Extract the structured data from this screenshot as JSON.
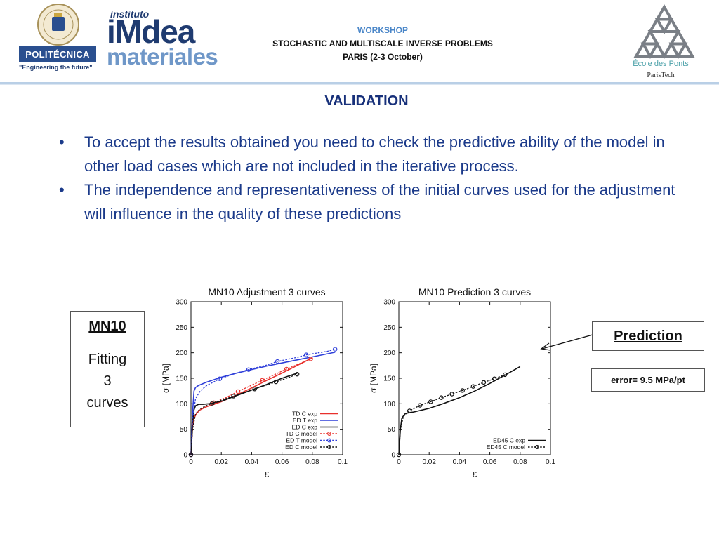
{
  "header": {
    "upm_name": "POLITÉCNICA",
    "upm_tagline": "\"Engineering the future\"",
    "imdea_small": "instituto",
    "imdea_big": "iMdea",
    "imdea_materials": "materiales",
    "workshop_line1": "WORKSHOP",
    "workshop_line2": "STOCHASTIC AND MULTISCALE INVERSE PROBLEMS",
    "workshop_line3": "PARIS (2-3 October)",
    "enpc_name": "École des Ponts",
    "enpc_sub": "ParisTech"
  },
  "slide": {
    "title": "VALIDATION",
    "bullets": [
      "To accept the results obtained you need to check the predictive ability of the model in other load cases which are not included in the iterative process.",
      "The independence and representativeness of the initial curves used for the adjustment will influence in the quality of these predictions"
    ],
    "bullet_symbol": "•"
  },
  "mn_box": {
    "title": "MN10",
    "body_line1": "Fitting",
    "body_line2": "3",
    "body_line3": "curves"
  },
  "prediction_box": {
    "label": "Prediction"
  },
  "error_box": {
    "label": "error= 9.5 MPa/pt"
  },
  "colors": {
    "red": "#e8302c",
    "blue": "#2f3fd9",
    "black": "#111111",
    "navy": "#1b3a8a"
  },
  "chart_data": [
    {
      "type": "line",
      "title": "MN10 Adjustment 3 curves",
      "xlabel": "ε",
      "ylabel": "σ [MPa]",
      "xlim": [
        0,
        0.1
      ],
      "ylim": [
        0,
        300
      ],
      "xticks": [
        0,
        0.02,
        0.04,
        0.06,
        0.08,
        0.1
      ],
      "xtick_labels": [
        "0",
        "0.02",
        "0.04",
        "0.06",
        "0.08",
        "0.1"
      ],
      "yticks": [
        0,
        50,
        100,
        150,
        200,
        250,
        300
      ],
      "ytick_labels": [
        "0",
        "50",
        "100",
        "150",
        "200",
        "250",
        "300"
      ],
      "legend_position": "bottom-right",
      "series": [
        {
          "name": "TD C exp",
          "color": "#e8302c",
          "style": "solid",
          "x": [
            0,
            0.001,
            0.002,
            0.004,
            0.006,
            0.01,
            0.02,
            0.03,
            0.04,
            0.05,
            0.06,
            0.07,
            0.08
          ],
          "y": [
            0,
            55,
            72,
            82,
            88,
            94,
            104,
            117,
            131,
            146,
            160,
            175,
            190
          ]
        },
        {
          "name": "ED T exp",
          "color": "#2f3fd9",
          "style": "solid",
          "x": [
            0,
            0.001,
            0.002,
            0.003,
            0.005,
            0.01,
            0.02,
            0.03,
            0.04,
            0.05,
            0.06,
            0.07,
            0.08,
            0.09,
            0.095
          ],
          "y": [
            0,
            80,
            125,
            132,
            136,
            142,
            152,
            160,
            167,
            174,
            180,
            186,
            192,
            198,
            201
          ]
        },
        {
          "name": "ED C exp",
          "color": "#111111",
          "style": "solid",
          "x": [
            0,
            0.001,
            0.002,
            0.003,
            0.005,
            0.008,
            0.012,
            0.02,
            0.03,
            0.04,
            0.05,
            0.06,
            0.07
          ],
          "y": [
            0,
            60,
            88,
            96,
            99,
            99,
            100,
            105,
            116,
            127,
            138,
            150,
            160
          ]
        },
        {
          "name": "TD C model",
          "color": "#e8302c",
          "style": "dashed",
          "markers": true,
          "x": [
            0,
            0.001,
            0.003,
            0.006,
            0.01,
            0.015,
            0.023,
            0.031,
            0.039,
            0.047,
            0.055,
            0.063,
            0.071,
            0.079
          ],
          "y": [
            0,
            55,
            80,
            90,
            96,
            102,
            112,
            124,
            135,
            146,
            157,
            168,
            178,
            188
          ],
          "marker_x": [
            0,
            0.015,
            0.031,
            0.047,
            0.063,
            0.079
          ],
          "marker_y": [
            0,
            102,
            124,
            146,
            168,
            188
          ]
        },
        {
          "name": "ED T model",
          "color": "#2f3fd9",
          "style": "dashed",
          "markers": true,
          "x": [
            0,
            0.001,
            0.003,
            0.006,
            0.01,
            0.019,
            0.03,
            0.038,
            0.05,
            0.057,
            0.07,
            0.076,
            0.09,
            0.095
          ],
          "y": [
            0,
            70,
            110,
            125,
            135,
            149,
            160,
            167,
            176,
            183,
            191,
            196,
            203,
            207
          ],
          "marker_x": [
            0,
            0.019,
            0.038,
            0.057,
            0.076,
            0.095
          ],
          "marker_y": [
            0,
            149,
            167,
            183,
            196,
            207
          ]
        },
        {
          "name": "ED C model",
          "color": "#111111",
          "style": "dashed",
          "markers": true,
          "x": [
            0,
            0.001,
            0.003,
            0.006,
            0.01,
            0.014,
            0.02,
            0.028,
            0.035,
            0.042,
            0.049,
            0.056,
            0.063,
            0.07
          ],
          "y": [
            0,
            50,
            80,
            90,
            96,
            101,
            107,
            115,
            122,
            129,
            136,
            143,
            150,
            158
          ],
          "marker_x": [
            0,
            0.014,
            0.028,
            0.042,
            0.056,
            0.07
          ],
          "marker_y": [
            0,
            101,
            115,
            129,
            143,
            158
          ]
        }
      ]
    },
    {
      "type": "line",
      "title": "MN10 Prediction 3 curves",
      "xlabel": "ε",
      "ylabel": "σ [MPa]",
      "xlim": [
        0,
        0.1
      ],
      "ylim": [
        0,
        300
      ],
      "xticks": [
        0,
        0.02,
        0.04,
        0.06,
        0.08,
        0.1
      ],
      "xtick_labels": [
        "0",
        "0.02",
        "0.04",
        "0.06",
        "0.08",
        "0.1"
      ],
      "yticks": [
        0,
        50,
        100,
        150,
        200,
        250,
        300
      ],
      "ytick_labels": [
        "0",
        "50",
        "100",
        "150",
        "200",
        "250",
        "300"
      ],
      "legend_position": "bottom-right",
      "series": [
        {
          "name": "ED45 C exp",
          "color": "#111111",
          "style": "solid",
          "x": [
            0,
            0.001,
            0.002,
            0.004,
            0.006,
            0.01,
            0.02,
            0.03,
            0.04,
            0.05,
            0.06,
            0.07,
            0.08
          ],
          "y": [
            0,
            50,
            72,
            80,
            82,
            84,
            91,
            101,
            112,
            125,
            140,
            156,
            173
          ]
        },
        {
          "name": "ED45 C model",
          "color": "#111111",
          "style": "dashed",
          "markers": true,
          "x": [
            0,
            0.001,
            0.003,
            0.007,
            0.014,
            0.021,
            0.028,
            0.035,
            0.042,
            0.049,
            0.056,
            0.063,
            0.07
          ],
          "y": [
            0,
            50,
            75,
            86,
            97,
            104,
            112,
            119,
            126,
            134,
            142,
            149,
            157
          ],
          "marker_x": [
            0,
            0.007,
            0.014,
            0.021,
            0.028,
            0.035,
            0.042,
            0.049,
            0.056,
            0.063,
            0.07
          ],
          "marker_y": [
            0,
            86,
            97,
            104,
            112,
            119,
            126,
            134,
            142,
            149,
            157
          ]
        }
      ]
    }
  ]
}
